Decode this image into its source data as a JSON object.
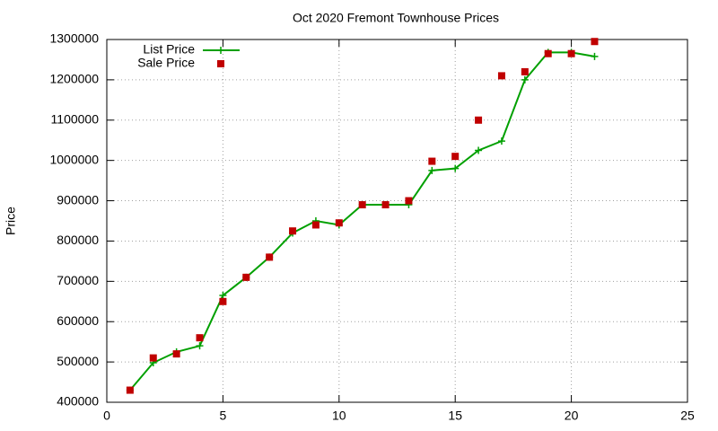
{
  "chart_data": {
    "type": "line",
    "title": "Oct 2020 Fremont Townhouse Prices",
    "y_label": "Price",
    "x": [
      1,
      2,
      3,
      4,
      5,
      6,
      7,
      8,
      9,
      10,
      11,
      12,
      13,
      14,
      15,
      16,
      17,
      18,
      19,
      20,
      21
    ],
    "series": [
      {
        "name": "List Price",
        "color": "#00a000",
        "line": true,
        "marker": "plus",
        "values": [
          430000,
          498000,
          525000,
          540000,
          665000,
          710000,
          760000,
          820000,
          850000,
          840000,
          890000,
          890000,
          890000,
          975000,
          980000,
          1025000,
          1048000,
          1200000,
          1268000,
          1268000,
          1258000
        ]
      },
      {
        "name": "Sale Price",
        "color": "#c00000",
        "line": false,
        "marker": "square",
        "values": [
          430000,
          510000,
          520000,
          560000,
          650000,
          710000,
          760000,
          825000,
          840000,
          845000,
          890000,
          890000,
          900000,
          998000,
          1010000,
          1100000,
          1210000,
          1220000,
          1265000,
          1265000,
          1295000
        ]
      }
    ],
    "xlim": [
      0,
      25
    ],
    "xticks": [
      0,
      5,
      10,
      15,
      20,
      25
    ],
    "ylim": [
      400000,
      1300000
    ],
    "yticks": [
      400000,
      500000,
      600000,
      700000,
      800000,
      900000,
      1000000,
      1100000,
      1200000,
      1300000
    ],
    "grid": true,
    "legend": "top-left"
  }
}
